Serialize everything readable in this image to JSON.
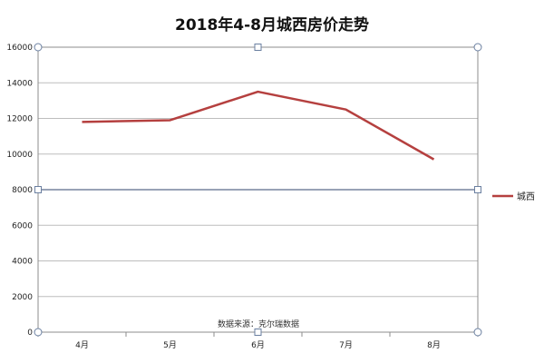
{
  "chart_data": {
    "type": "line",
    "title": "2018年4-8月城西房价走势",
    "categories": [
      "4月",
      "5月",
      "6月",
      "7月",
      "8月"
    ],
    "series": [
      {
        "name": "城西",
        "values": [
          11800,
          11900,
          13500,
          12500,
          9700
        ],
        "color": "#b5403f"
      }
    ],
    "ylim": [
      0,
      16000
    ],
    "yticks": [
      0,
      2000,
      4000,
      6000,
      8000,
      10000,
      12000,
      14000,
      16000
    ],
    "grid": true,
    "legend": "right",
    "annotation": "数据来源：克尔瑞数据",
    "xlabel": "",
    "ylabel": ""
  }
}
